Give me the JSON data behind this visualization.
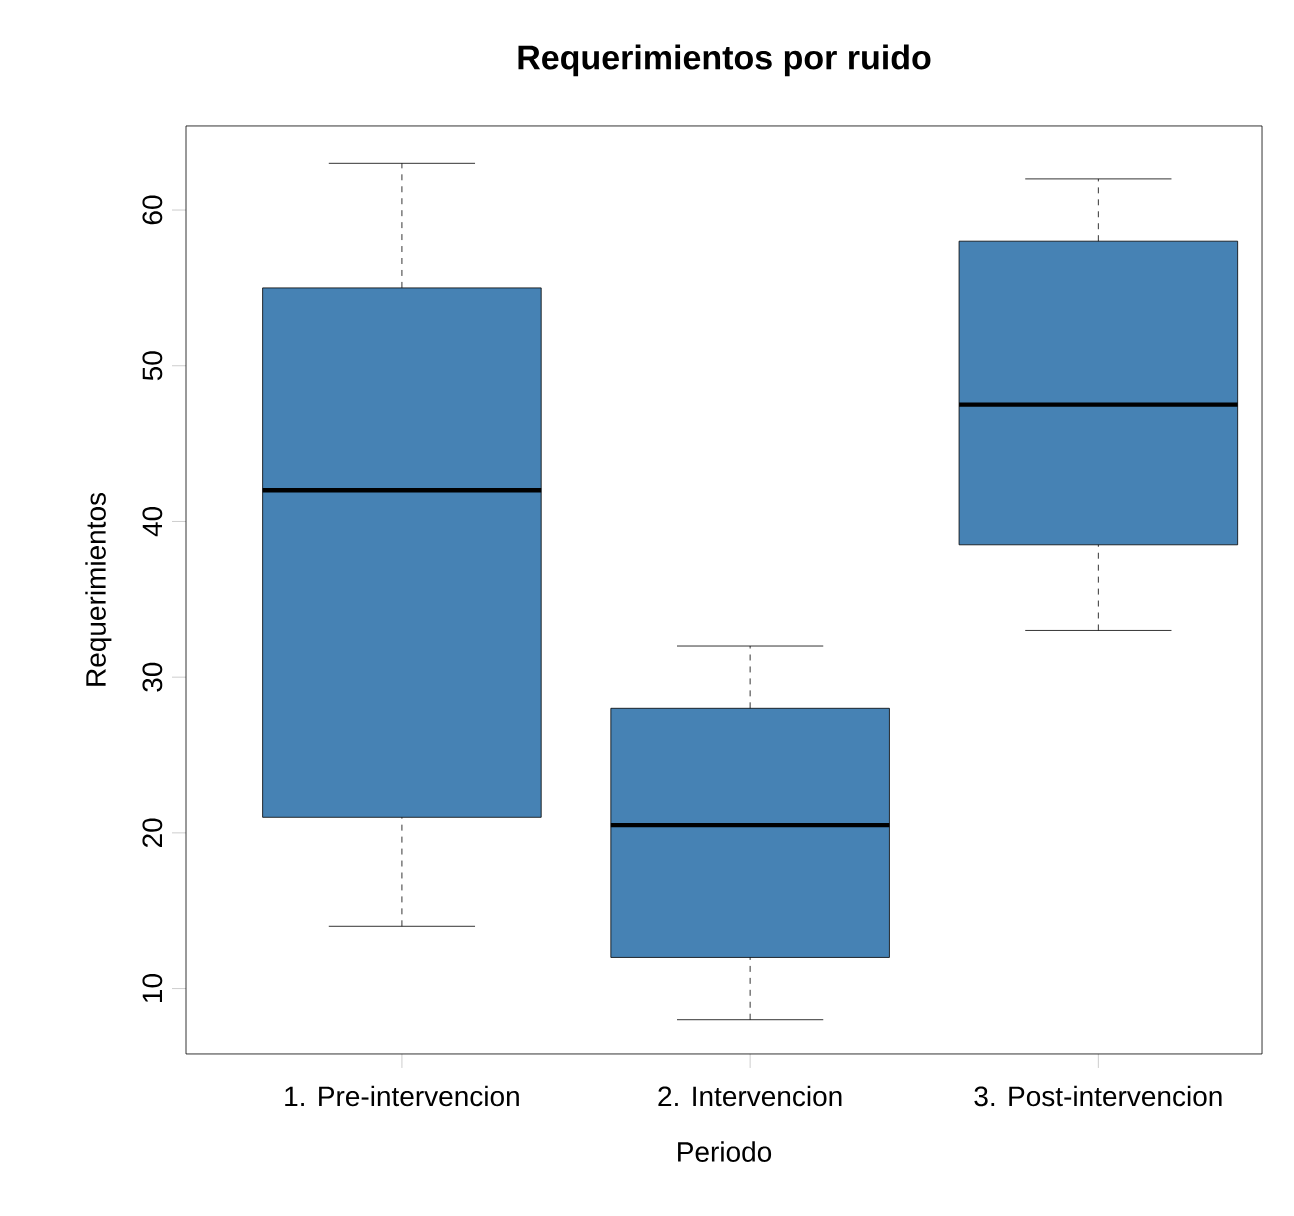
{
  "chart_data": {
    "type": "box",
    "title": "Requerimientos por ruido",
    "xlabel": "Periodo",
    "ylabel": "Requerimientos",
    "categories": [
      "1. Pre-intervencion",
      "2. Intervencion",
      "3. Post-intervencion"
    ],
    "boxes": [
      {
        "low": 14,
        "q1": 21,
        "median": 42,
        "q3": 55,
        "high": 63
      },
      {
        "low": 8,
        "q1": 12,
        "median": 20.5,
        "q3": 28,
        "high": 32
      },
      {
        "low": 33,
        "q1": 38.5,
        "median": 47.5,
        "q3": 58,
        "high": 62
      }
    ],
    "color": "#4682b4",
    "ylim": [
      5.8,
      65.4
    ],
    "yticks": [
      10,
      20,
      30,
      40,
      50,
      60
    ]
  }
}
